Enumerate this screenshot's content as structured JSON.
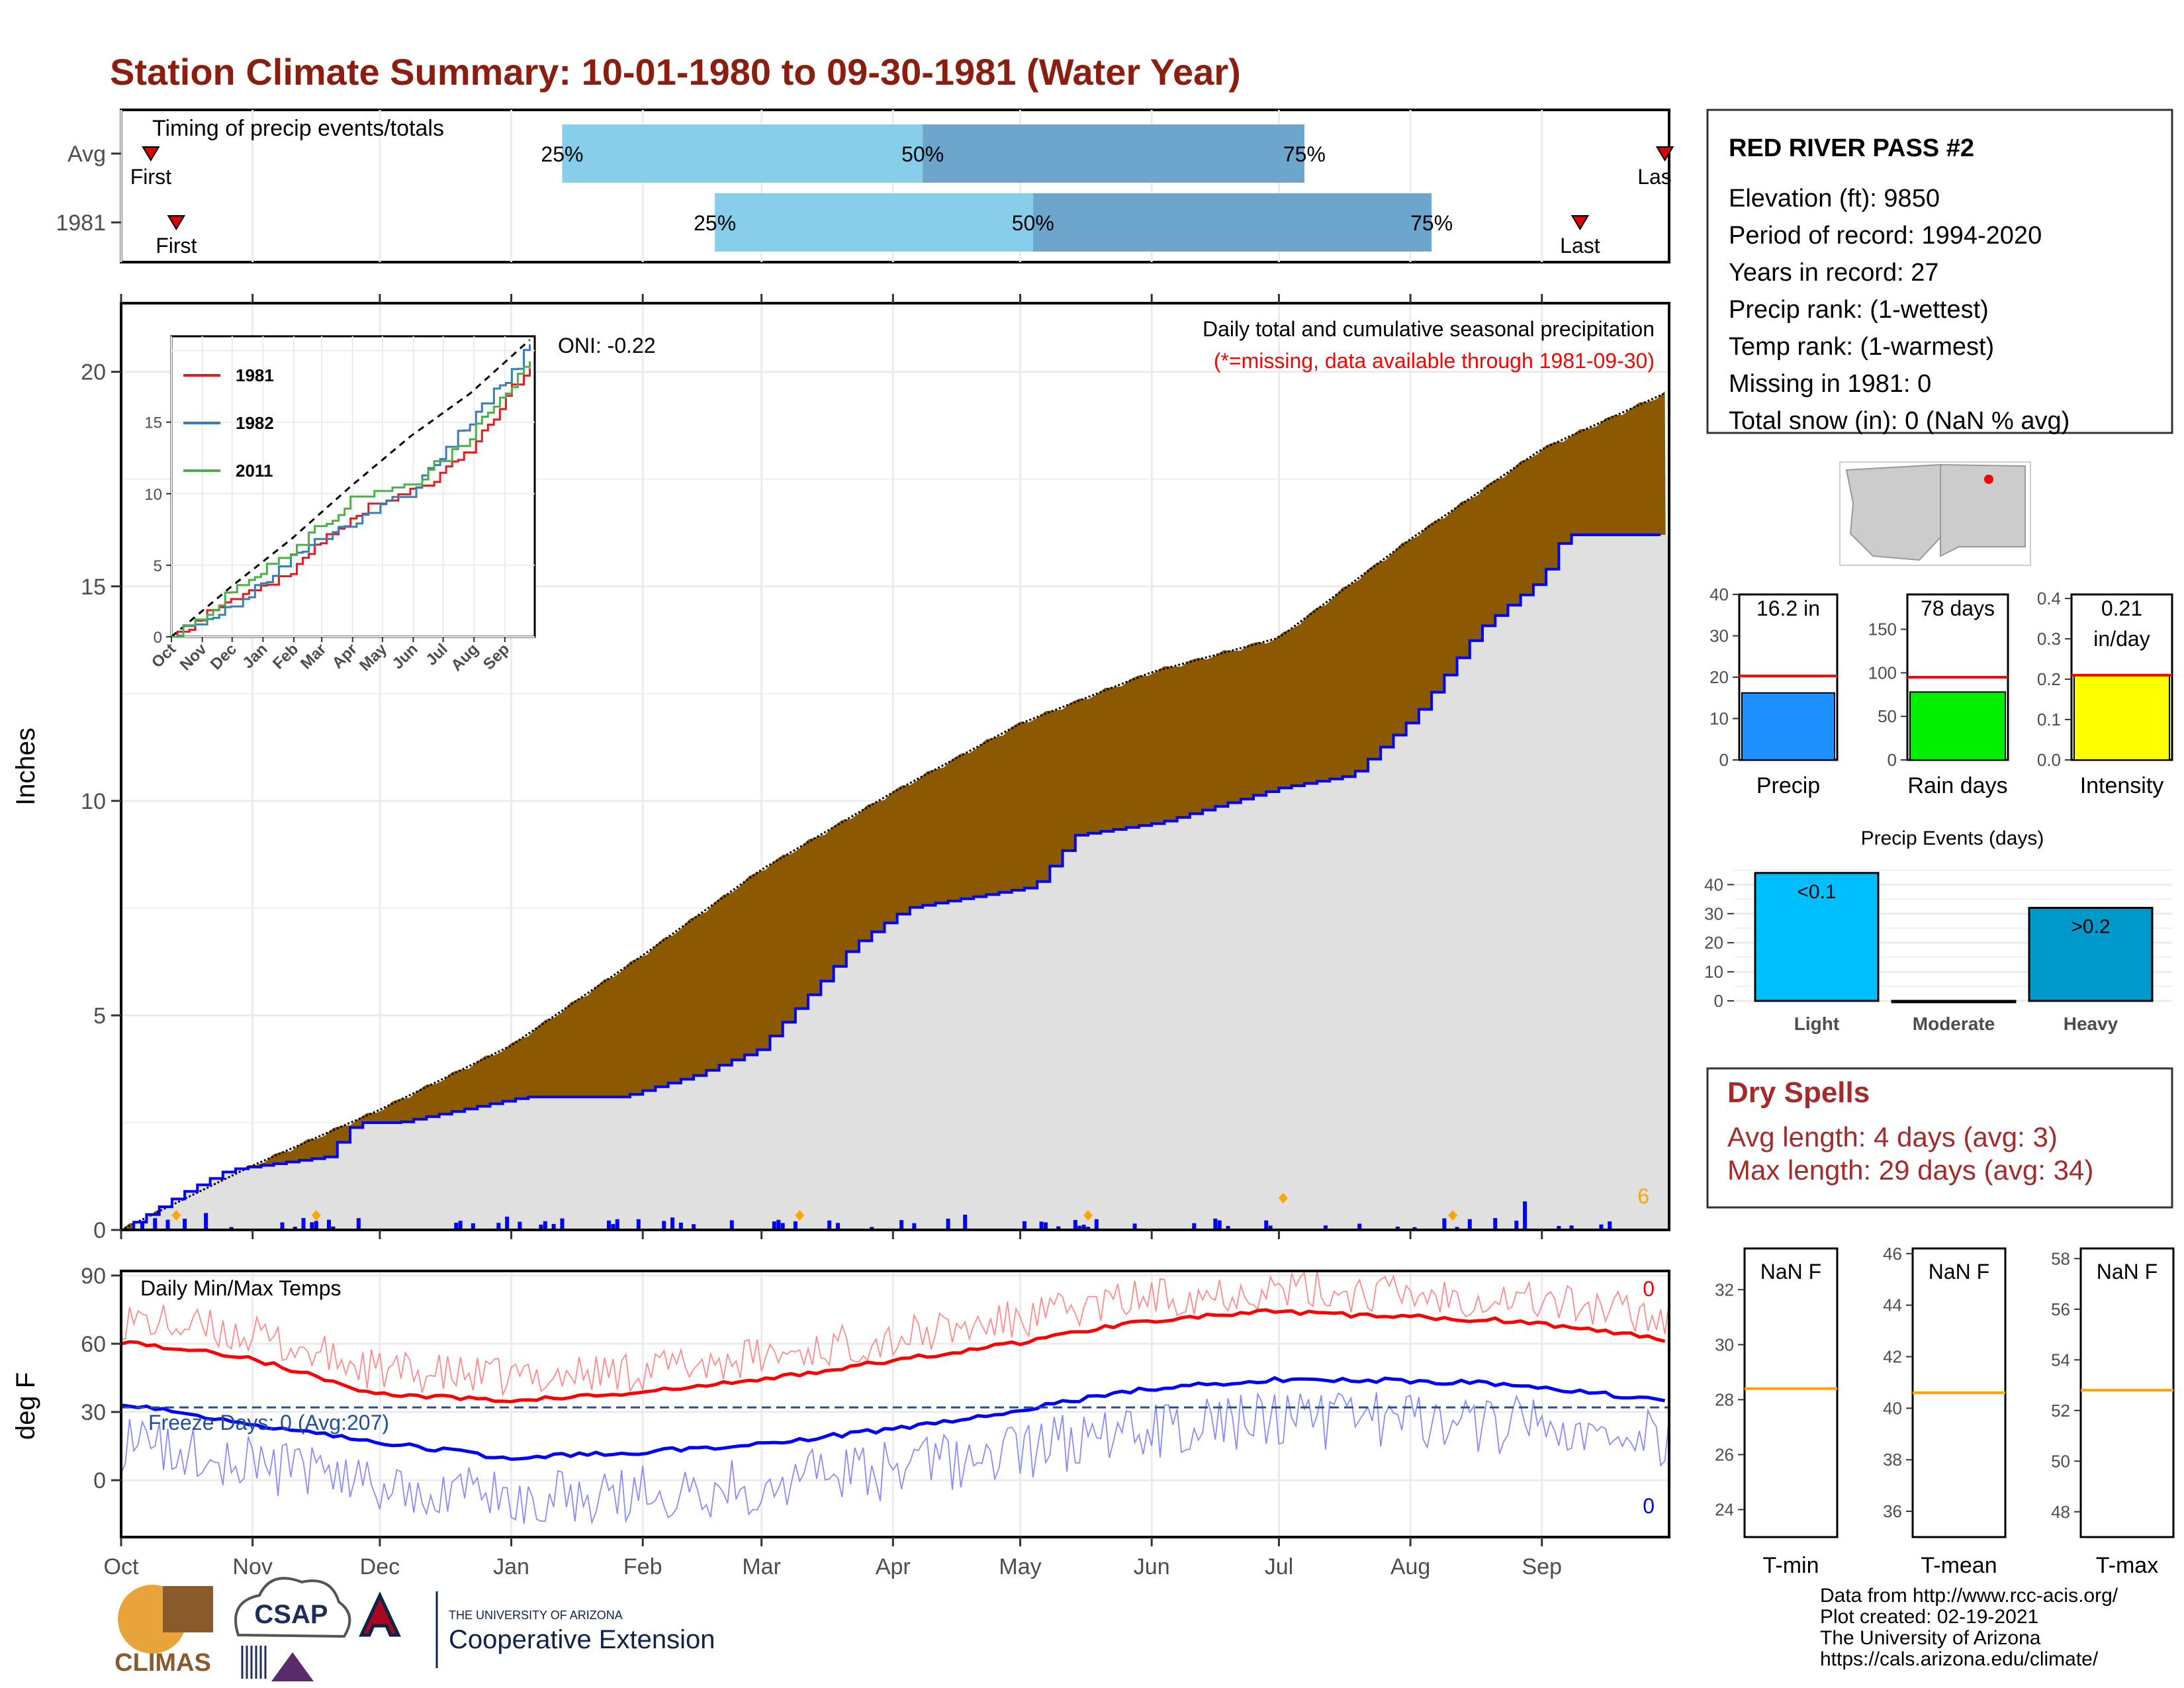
{
  "title": "Station Climate Summary: 10-01-1980 to 09-30-1981 (Water Year)",
  "timing": {
    "label": "Timing of precip events/totals",
    "rows": [
      {
        "name": "Avg",
        "first_label": "First",
        "last_label": "Las",
        "first_day": 7,
        "last_day": 364,
        "p25_label": "25%",
        "p50_label": "50%",
        "p75_label": "75%",
        "p25_day": 104,
        "p50_day": 189,
        "p75_day": 279
      },
      {
        "name": "1981",
        "first_label": "First",
        "last_label": "Last",
        "first_day": 13,
        "last_day": 344,
        "p25_label": "25%",
        "p50_label": "50%",
        "p75_label": "75%",
        "p25_day": 140,
        "p50_day": 215,
        "p75_day": 309
      }
    ]
  },
  "precip_panel": {
    "ylabel": "Inches",
    "yticks": [
      "0",
      "5",
      "10",
      "15",
      "20"
    ],
    "caption": "Daily total and cumulative seasonal precipitation",
    "missing_note": "(*=missing, data available through 1981-09-30)",
    "oni": "ONI: -0.22",
    "missing_count": "6"
  },
  "inset": {
    "yticks": [
      "0",
      "5",
      "10",
      "15"
    ],
    "months": [
      "Oct",
      "Nov",
      "Dec",
      "Jan",
      "Feb",
      "Mar",
      "Apr",
      "May",
      "Jun",
      "Jul",
      "Aug",
      "Sep"
    ],
    "legend": [
      "1981",
      "1982",
      "2011"
    ],
    "colors": [
      "#e41a1c",
      "#377eb8",
      "#4daf4a"
    ]
  },
  "temp_panel": {
    "ylabel": "deg F",
    "label": "Daily Min/Max Temps",
    "yticks": [
      "0",
      "30",
      "60",
      "90"
    ],
    "freeze_text": "Freeze Days: 0 (Avg:207)",
    "max_missing": "0",
    "min_missing": "0"
  },
  "months": [
    "Oct",
    "Nov",
    "Dec",
    "Jan",
    "Feb",
    "Mar",
    "Apr",
    "May",
    "Jun",
    "Jul",
    "Aug",
    "Sep"
  ],
  "station": {
    "name": "RED RIVER PASS #2",
    "lines": [
      "Elevation (ft): 9850",
      "Period of record: 1994-2020",
      "Years in record: 27",
      "Precip rank:  (1-wettest)",
      "Temp rank:  (1-warmest)",
      "Missing in 1981: 0",
      "Total snow (in): 0 (NaN % avg)"
    ]
  },
  "summary_bars": [
    {
      "label": "Precip",
      "value_label": "16.2 in",
      "value_label2": "",
      "value": 16.2,
      "avg": 20.3,
      "ymax": 40,
      "ticks": [
        "0",
        "10",
        "20",
        "30",
        "40"
      ],
      "color": "#1E90FF"
    },
    {
      "label": "Rain days",
      "value_label": "78 days",
      "value_label2": "",
      "value": 78,
      "avg": 95,
      "ymax": 190,
      "ticks": [
        "0",
        "50",
        "100",
        "150"
      ],
      "color": "#00EE00"
    },
    {
      "label": "Intensity",
      "value_label": "0.21",
      "value_label2": "in/day",
      "value": 0.21,
      "avg": 0.21,
      "ymax": 0.41,
      "ticks": [
        "0.0",
        "0.1",
        "0.2",
        "0.3",
        "0.4"
      ],
      "color": "#FFFF00"
    }
  ],
  "events": {
    "title": "Precip Events (days)",
    "ticks": [
      "0",
      "10",
      "20",
      "30",
      "40"
    ],
    "bars": [
      {
        "label": "Light",
        "value": 44,
        "value_label": "<0.1",
        "color": "#00BFFF"
      },
      {
        "label": "Moderate",
        "value": 0,
        "value_label": "",
        "color": "#000000"
      },
      {
        "label": "Heavy",
        "value": 32,
        "value_label": ">0.2",
        "color": "#0099CC"
      }
    ]
  },
  "dry_spells": {
    "title": "Dry Spells",
    "avg_line": "Avg length: 4 days (avg: 3)",
    "max_line": "Max length: 29 days (avg: 34)"
  },
  "temp_boxes": [
    {
      "label": "T-min",
      "value_label": "NaN F",
      "ticks": [
        "24",
        "26",
        "28",
        "30",
        "32"
      ],
      "ymin": 23,
      "ymax": 33.5,
      "avg": 28.4
    },
    {
      "label": "T-mean",
      "value_label": "NaN F",
      "ticks": [
        "36",
        "38",
        "40",
        "42",
        "44",
        "46"
      ],
      "ymin": 35,
      "ymax": 46.2,
      "avg": 40.6
    },
    {
      "label": "T-max",
      "value_label": "NaN F",
      "ticks": [
        "48",
        "50",
        "52",
        "54",
        "56",
        "58"
      ],
      "ymin": 47,
      "ymax": 58.4,
      "avg": 52.8
    }
  ],
  "footer": [
    "Data from http://www.rcc-acis.org/",
    "Plot created: 02-19-2021",
    "The University of Arizona",
    "https://cals.arizona.edu/climate/"
  ],
  "logos": {
    "climas": "CLIMAS",
    "csap": "CSAP",
    "ua_small": "THE UNIVERSITY OF ARIZONA",
    "ua_big": "Cooperative Extension"
  },
  "colors": {
    "title": "#8B1E0E",
    "avg_cumulative": "#8B5A00",
    "observed_area": "#E0E0E0",
    "observed_line": "#0000FF",
    "tmax": "#FF0000",
    "tmin": "#0000FF",
    "dry_spells": "#A52A2A"
  },
  "chart_data": [
    {
      "type": "area",
      "title": "Daily total and cumulative seasonal precipitation",
      "ylabel": "Inches",
      "ylim": [
        0,
        21.6
      ],
      "x_unit": "day of water year (Oct 1 = 0)",
      "series": [
        {
          "name": "Avg",
          "x": [
            0,
            31,
            61,
            92,
            123,
            151,
            182,
            212,
            243,
            273,
            304,
            335,
            364
          ],
          "values": [
            0,
            1.5,
            2.8,
            4.3,
            6.4,
            8.4,
            10.2,
            11.8,
            13.0,
            13.8,
            16.1,
            18.2,
            19.5
          ]
        },
        {
          "name": "1981",
          "x": [
            0,
            15,
            25,
            48,
            55,
            65,
            95,
            118,
            135,
            150,
            165,
            172,
            185,
            215,
            225,
            245,
            273,
            290,
            305,
            320,
            335,
            340,
            364
          ],
          "values": [
            0,
            0.9,
            1.4,
            1.7,
            2.5,
            2.5,
            3.1,
            3.1,
            3.6,
            4.2,
            5.8,
            6.6,
            7.5,
            8.0,
            9.2,
            9.5,
            10.3,
            10.6,
            12.0,
            14.0,
            15.2,
            16.2,
            16.2
          ]
        }
      ]
    },
    {
      "type": "line",
      "title": "",
      "ylim": [
        0,
        21
      ],
      "categories": [
        "Oct",
        "Nov",
        "Dec",
        "Jan",
        "Feb",
        "Mar",
        "Apr",
        "May",
        "Jun",
        "Jul",
        "Aug",
        "Sep"
      ],
      "series": [
        {
          "name": "",
          "x": [
            0,
            60,
            120,
            180,
            240,
            300,
            364
          ],
          "values": [
            0,
            3.5,
            6.8,
            10.5,
            14.0,
            17.0,
            21.0
          ]
        },
        {
          "name": "1981",
          "x": [
            0,
            60,
            120,
            180,
            240,
            300,
            364
          ],
          "values": [
            0,
            2.5,
            4.5,
            8.5,
            10.0,
            13.0,
            19.5
          ]
        },
        {
          "name": "1982",
          "x": [
            0,
            60,
            120,
            180,
            240,
            300,
            364
          ],
          "values": [
            0,
            2.0,
            5.5,
            8.0,
            10.0,
            15.0,
            20.5
          ]
        },
        {
          "name": "2011",
          "x": [
            0,
            60,
            120,
            180,
            240,
            300,
            364
          ],
          "values": [
            0,
            3.0,
            6.0,
            9.5,
            10.5,
            14.0,
            19.5
          ]
        }
      ]
    },
    {
      "type": "line",
      "title": "Daily Min/Max Temps",
      "ylabel": "deg F",
      "ylim": [
        -25,
        92
      ],
      "series": [
        {
          "name": "",
          "x": [
            0,
            30,
            60,
            90,
            120,
            150,
            180,
            210,
            240,
            270,
            300,
            330,
            364
          ],
          "values": [
            61,
            54,
            38,
            35,
            38,
            44,
            52,
            60,
            70,
            74,
            72,
            70,
            62
          ]
        },
        {
          "name": "",
          "x": [
            0,
            30,
            60,
            90,
            120,
            150,
            180,
            210,
            240,
            270,
            300,
            330,
            364
          ],
          "values": [
            34,
            25,
            17,
            10,
            12,
            16,
            22,
            30,
            40,
            44,
            44,
            42,
            35
          ]
        }
      ]
    }
  ]
}
